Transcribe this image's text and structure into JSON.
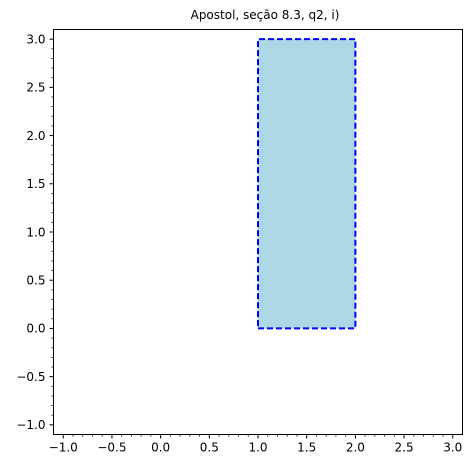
{
  "chart_data": {
    "type": "area",
    "title": "Apostol, seção 8.3, q2, i)",
    "xlabel": "",
    "ylabel": "",
    "xlim": [
      -1.1,
      3.1
    ],
    "ylim": [
      -1.1,
      3.1
    ],
    "grid": false,
    "x_ticks": [
      {
        "value": -1.0,
        "label": "−1.0"
      },
      {
        "value": -0.5,
        "label": "−0.5"
      },
      {
        "value": 0.0,
        "label": "0.0"
      },
      {
        "value": 0.5,
        "label": "0.5"
      },
      {
        "value": 1.0,
        "label": "1.0"
      },
      {
        "value": 1.5,
        "label": "1.5"
      },
      {
        "value": 2.0,
        "label": "2.0"
      },
      {
        "value": 2.5,
        "label": "2.5"
      },
      {
        "value": 3.0,
        "label": "3.0"
      }
    ],
    "y_ticks": [
      {
        "value": -1.0,
        "label": "−1.0"
      },
      {
        "value": -0.5,
        "label": "−0.5"
      },
      {
        "value": 0.0,
        "label": "0.0"
      },
      {
        "value": 0.5,
        "label": "0.5"
      },
      {
        "value": 1.0,
        "label": "1.0"
      },
      {
        "value": 1.5,
        "label": "1.5"
      },
      {
        "value": 2.0,
        "label": "2.0"
      },
      {
        "value": 2.5,
        "label": "2.5"
      },
      {
        "value": 3.0,
        "label": "3.0"
      }
    ],
    "region": {
      "x": [
        1.0,
        2.0,
        2.0,
        1.0
      ],
      "y": [
        0.0,
        0.0,
        3.0,
        3.0
      ],
      "fill_color": "#add8e6",
      "edge_color": "#0000ff",
      "edge_style": "dashed"
    }
  }
}
